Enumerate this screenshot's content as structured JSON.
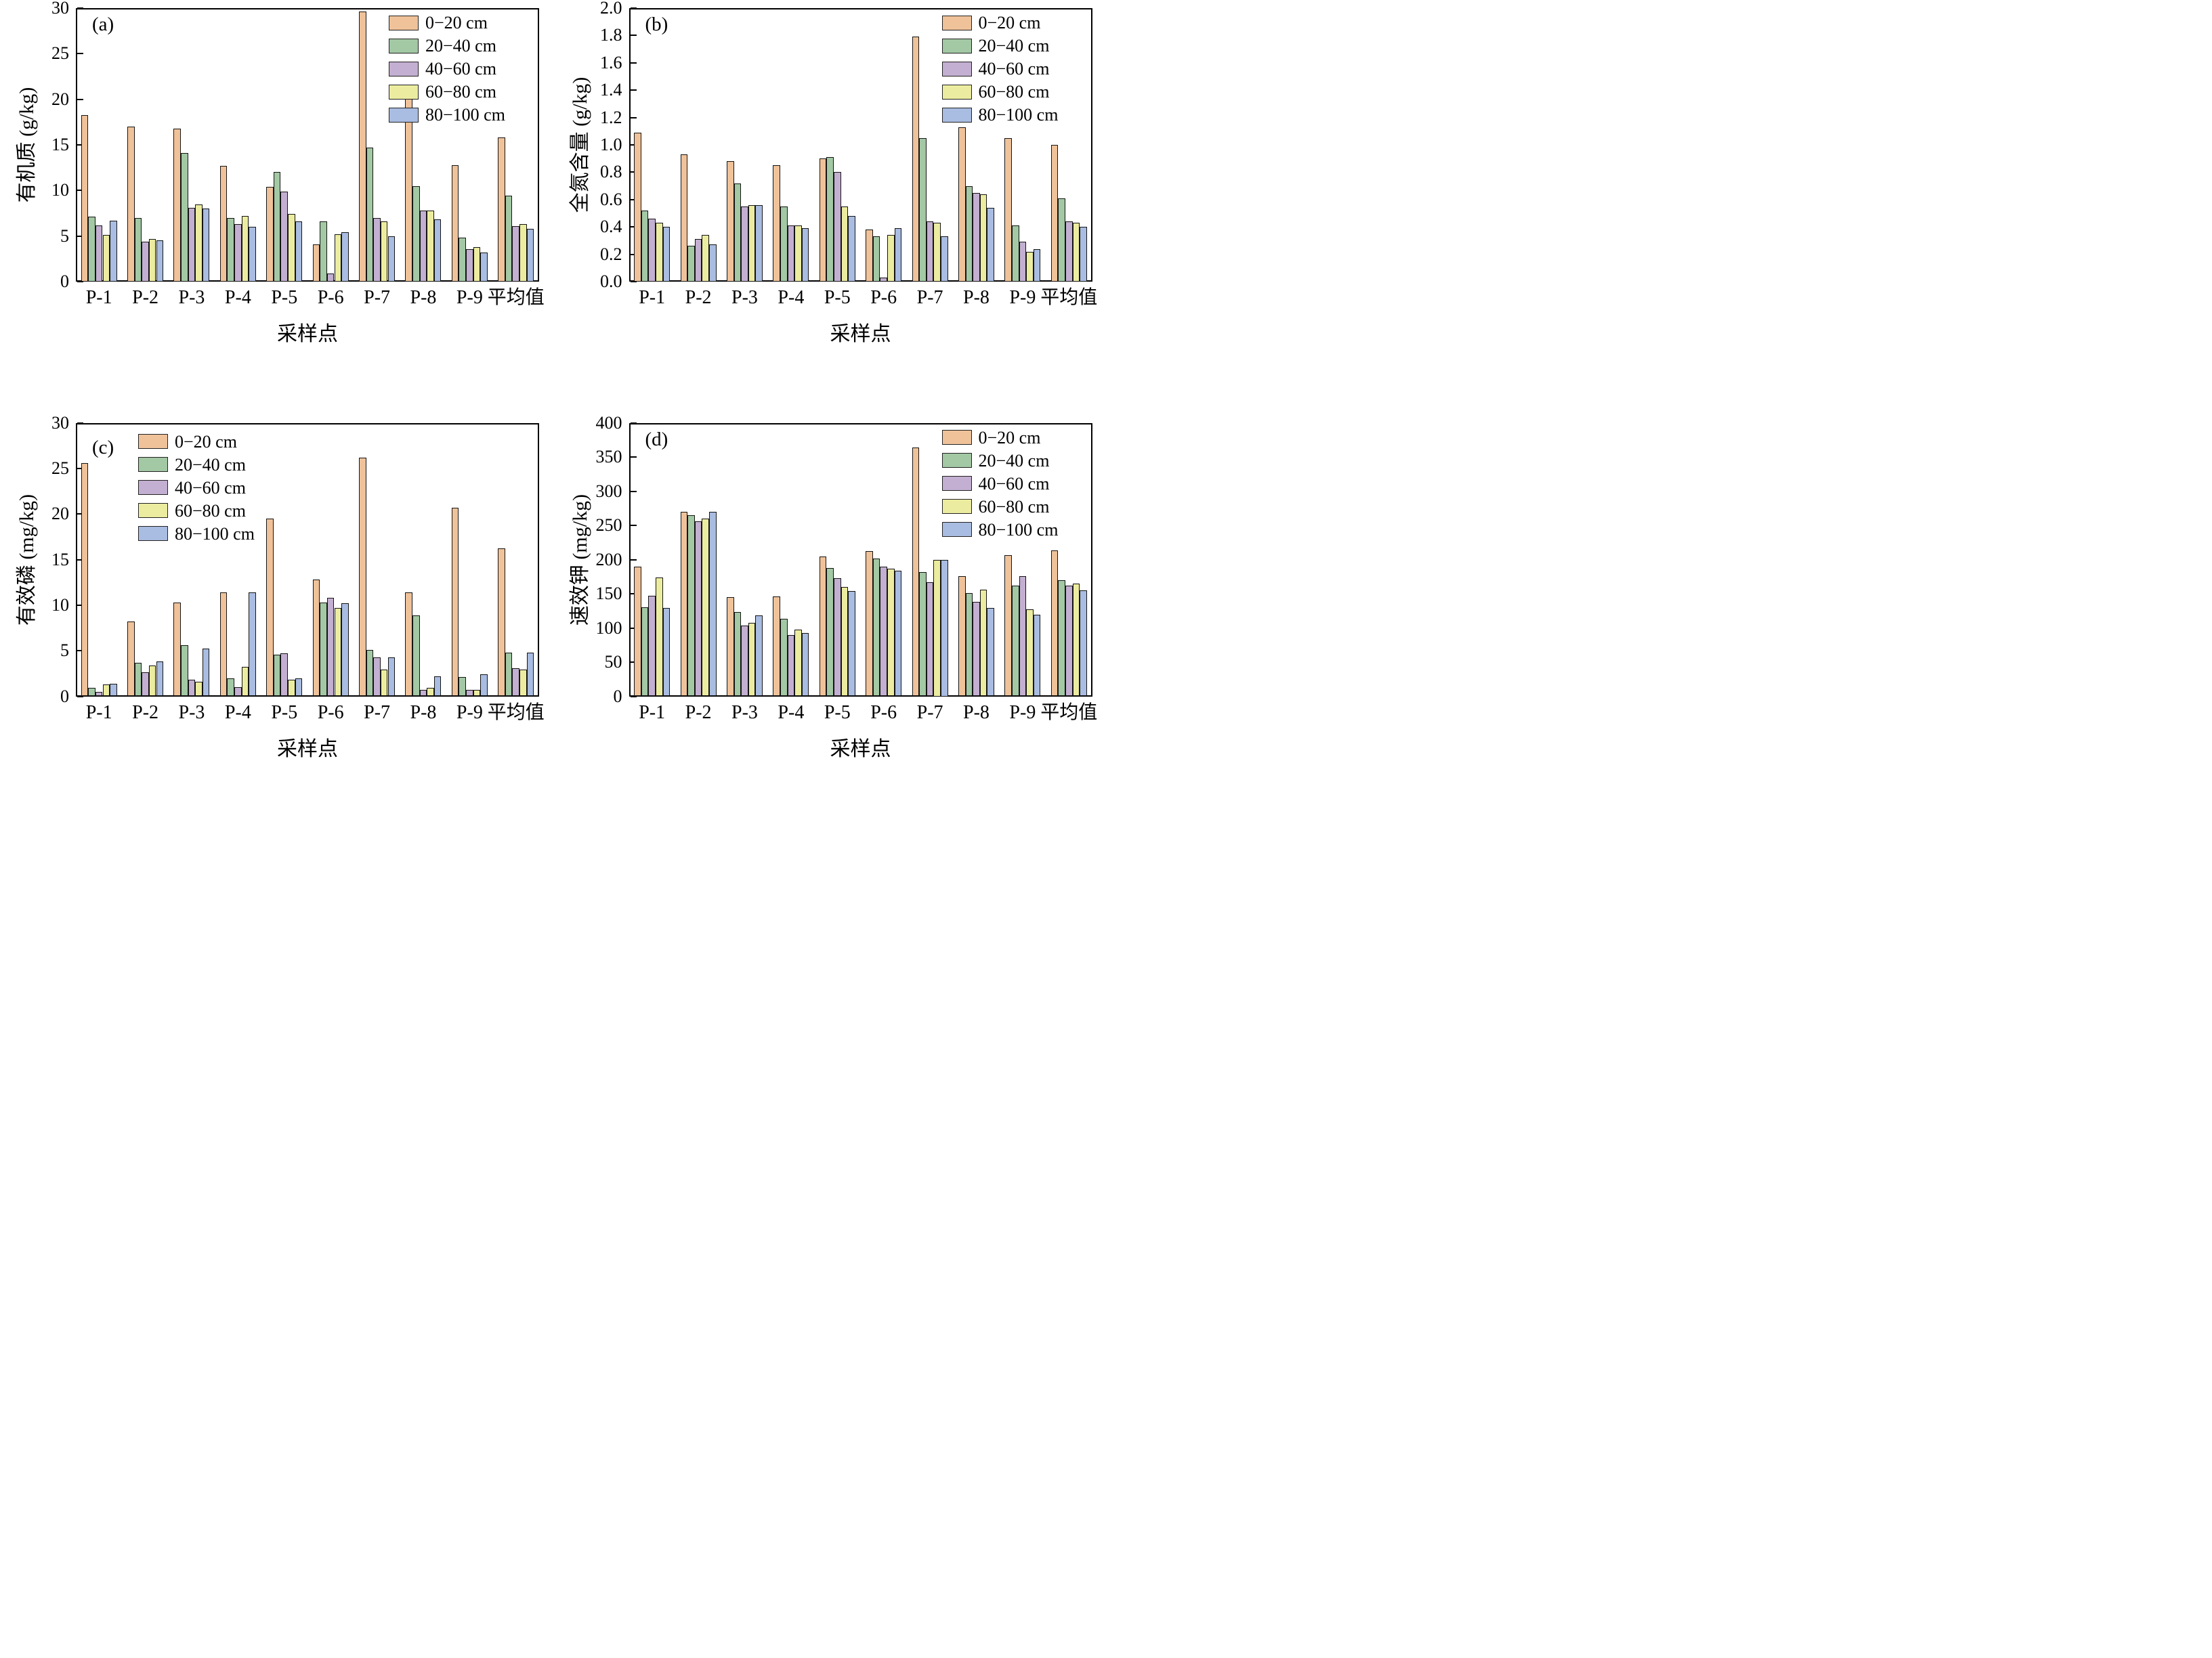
{
  "figure_title": "",
  "shared": {
    "xlabel": "采样点",
    "legend_labels": [
      "0−20 cm",
      "20−40 cm",
      "40−60 cm",
      "60−80 cm",
      "80−100 cm"
    ],
    "series_colors": [
      "#EFC29A",
      "#A2C8A4",
      "#C3AFD1",
      "#ECECA0",
      "#A9BCE1"
    ],
    "bar_border_color": "#141414",
    "axis_color": "#000000"
  },
  "chart_data": [
    {
      "type": "bar",
      "letter": "(a)",
      "ylabel": "有机质 (g/kg)",
      "xlabel": "采样点",
      "ylim": [
        0,
        30
      ],
      "ytick_values": [
        0,
        5,
        10,
        15,
        20,
        25,
        30
      ],
      "yticks": [
        "0",
        "5",
        "10",
        "15",
        "20",
        "25",
        "30"
      ],
      "legend_position": "top-right",
      "grid": "off",
      "categories": [
        "P-1",
        "P-2",
        "P-3",
        "P-4",
        "P-5",
        "P-6",
        "P-7",
        "P-8",
        "P-9",
        "平均值"
      ],
      "series": [
        {
          "name": "0−20 cm",
          "color": "#EFC29A",
          "values": [
            18.3,
            17.0,
            16.8,
            12.7,
            10.4,
            4.1,
            29.6,
            20.2,
            12.8,
            15.8
          ]
        },
        {
          "name": "20−40 cm",
          "color": "#A2C8A4",
          "values": [
            7.1,
            7.0,
            14.1,
            7.0,
            12.0,
            6.6,
            14.7,
            10.5,
            4.8,
            9.4
          ]
        },
        {
          "name": "40−60 cm",
          "color": "#C3AFD1",
          "values": [
            6.2,
            4.4,
            8.1,
            6.3,
            9.9,
            0.9,
            7.0,
            7.8,
            3.6,
            6.1
          ]
        },
        {
          "name": "60−80 cm",
          "color": "#ECECA0",
          "values": [
            5.1,
            4.7,
            8.5,
            7.2,
            7.4,
            5.2,
            6.6,
            7.8,
            3.8,
            6.3
          ]
        },
        {
          "name": "80−100 cm",
          "color": "#A9BCE1",
          "values": [
            6.7,
            4.5,
            8.0,
            6.0,
            6.6,
            5.4,
            5.0,
            6.8,
            3.2,
            5.8
          ]
        }
      ]
    },
    {
      "type": "bar",
      "letter": "(b)",
      "ylabel": "全氮含量 (g/kg)",
      "xlabel": "采样点",
      "ylim": [
        0,
        2.0
      ],
      "ytick_values": [
        0,
        0.2,
        0.4,
        0.6,
        0.8,
        1.0,
        1.2,
        1.4,
        1.6,
        1.8,
        2.0
      ],
      "yticks": [
        "0.0",
        "0.2",
        "0.4",
        "0.6",
        "0.8",
        "1.0",
        "1.2",
        "1.4",
        "1.6",
        "1.8",
        "2.0"
      ],
      "legend_position": "top-right",
      "grid": "off",
      "categories": [
        "P-1",
        "P-2",
        "P-3",
        "P-4",
        "P-5",
        "P-6",
        "P-7",
        "P-8",
        "P-9",
        "平均值"
      ],
      "series": [
        {
          "name": "0−20 cm",
          "color": "#EFC29A",
          "values": [
            1.09,
            0.93,
            0.88,
            0.85,
            0.9,
            0.38,
            1.79,
            1.13,
            1.05,
            1.0
          ]
        },
        {
          "name": "20−40 cm",
          "color": "#A2C8A4",
          "values": [
            0.52,
            0.26,
            0.72,
            0.55,
            0.91,
            0.33,
            1.05,
            0.7,
            0.41,
            0.61
          ]
        },
        {
          "name": "40−60 cm",
          "color": "#C3AFD1",
          "values": [
            0.46,
            0.31,
            0.55,
            0.41,
            0.8,
            0.03,
            0.44,
            0.65,
            0.29,
            0.44
          ]
        },
        {
          "name": "60−80 cm",
          "color": "#ECECA0",
          "values": [
            0.43,
            0.34,
            0.56,
            0.41,
            0.55,
            0.34,
            0.43,
            0.64,
            0.22,
            0.43
          ]
        },
        {
          "name": "80−100 cm",
          "color": "#A9BCE1",
          "values": [
            0.4,
            0.27,
            0.56,
            0.39,
            0.48,
            0.39,
            0.33,
            0.54,
            0.24,
            0.4
          ]
        }
      ]
    },
    {
      "type": "bar",
      "letter": "(c)",
      "ylabel": "有效磷 (mg/kg)",
      "xlabel": "采样点",
      "ylim": [
        0,
        30
      ],
      "ytick_values": [
        0,
        5,
        10,
        15,
        20,
        25,
        30
      ],
      "yticks": [
        "0",
        "5",
        "10",
        "15",
        "20",
        "25",
        "30"
      ],
      "legend_position": "top-left",
      "grid": "off",
      "categories": [
        "P-1",
        "P-2",
        "P-3",
        "P-4",
        "P-5",
        "P-6",
        "P-7",
        "P-8",
        "P-9",
        "平均值"
      ],
      "series": [
        {
          "name": "0−20 cm",
          "color": "#EFC29A",
          "values": [
            25.6,
            8.2,
            10.3,
            11.4,
            19.5,
            12.8,
            26.2,
            11.4,
            20.7,
            16.2
          ]
        },
        {
          "name": "20−40 cm",
          "color": "#A2C8A4",
          "values": [
            0.9,
            3.7,
            5.6,
            2.0,
            4.6,
            10.3,
            5.1,
            8.9,
            2.1,
            4.8
          ]
        },
        {
          "name": "40−60 cm",
          "color": "#C3AFD1",
          "values": [
            0.5,
            2.6,
            1.8,
            1.0,
            4.7,
            10.8,
            4.3,
            0.7,
            0.7,
            3.1
          ]
        },
        {
          "name": "60−80 cm",
          "color": "#ECECA0",
          "values": [
            1.3,
            3.4,
            1.6,
            3.2,
            1.8,
            9.7,
            2.9,
            0.9,
            0.7,
            2.9
          ]
        },
        {
          "name": "80−100 cm",
          "color": "#A9BCE1",
          "values": [
            1.4,
            3.8,
            5.2,
            11.4,
            2.0,
            10.2,
            4.3,
            2.2,
            2.4,
            4.8
          ]
        }
      ]
    },
    {
      "type": "bar",
      "letter": "(d)",
      "ylabel": "速效钾 (mg/kg)",
      "xlabel": "采样点",
      "ylim": [
        0,
        400
      ],
      "ytick_values": [
        0,
        50,
        100,
        150,
        200,
        250,
        300,
        350,
        400
      ],
      "yticks": [
        "0",
        "50",
        "100",
        "150",
        "200",
        "250",
        "300",
        "350",
        "400"
      ],
      "legend_position": "top-right",
      "grid": "off",
      "categories": [
        "P-1",
        "P-2",
        "P-3",
        "P-4",
        "P-5",
        "P-6",
        "P-7",
        "P-8",
        "P-9",
        "平均值"
      ],
      "series": [
        {
          "name": "0−20 cm",
          "color": "#EFC29A",
          "values": [
            190,
            270,
            145,
            146,
            204,
            212,
            364,
            176,
            206,
            213
          ]
        },
        {
          "name": "20−40 cm",
          "color": "#A2C8A4",
          "values": [
            130,
            265,
            123,
            113,
            188,
            201,
            182,
            151,
            162,
            170
          ]
        },
        {
          "name": "40−60 cm",
          "color": "#C3AFD1",
          "values": [
            147,
            256,
            103,
            90,
            173,
            190,
            167,
            138,
            176,
            162
          ]
        },
        {
          "name": "60−80 cm",
          "color": "#ECECA0",
          "values": [
            174,
            260,
            107,
            98,
            160,
            187,
            200,
            156,
            127,
            165
          ]
        },
        {
          "name": "80−100 cm",
          "color": "#A9BCE1",
          "values": [
            129,
            270,
            118,
            93,
            154,
            184,
            200,
            129,
            119,
            155
          ]
        }
      ]
    }
  ]
}
